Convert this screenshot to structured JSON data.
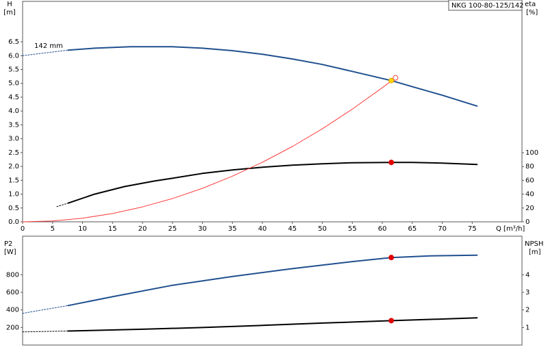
{
  "chart_data": [
    {
      "type": "line",
      "title": "NKG 100-80-125/142",
      "xlabel": "Q [m³/h]",
      "ylabel": "H",
      "yunit": "[m]",
      "y2label": "eta",
      "y2unit": "[%]",
      "xlim": [
        0,
        83.3
      ],
      "xticks": [
        0,
        5,
        10,
        15,
        20,
        25,
        30,
        35,
        40,
        45,
        50,
        55,
        60,
        65,
        70,
        75
      ],
      "ylim": [
        0,
        7.96
      ],
      "yticks": [
        {
          "value": 0,
          "label": "0.0"
        },
        {
          "value": 0.5,
          "label": "0.5"
        },
        {
          "value": 1,
          "label": "1.0"
        },
        {
          "value": 1.5,
          "label": "1.5"
        },
        {
          "value": 2,
          "label": "2.0"
        },
        {
          "value": 2.5,
          "label": "2.5"
        },
        {
          "value": 3,
          "label": "3.0"
        },
        {
          "value": 3.5,
          "label": "3.5"
        },
        {
          "value": 4,
          "label": "4.0"
        },
        {
          "value": 4.5,
          "label": "4.5"
        },
        {
          "value": 5,
          "label": "5.0"
        },
        {
          "value": 5.5,
          "label": "5.5"
        },
        {
          "value": 6,
          "label": "6.0"
        },
        {
          "value": 6.5,
          "label": "6.5"
        }
      ],
      "y2lim": [
        0,
        319
      ],
      "y2ticks": [
        0,
        20,
        40,
        60,
        80,
        100
      ],
      "series": [
        {
          "name": "142 mm",
          "color": "#1f4f8f",
          "width": 2,
          "x": [
            7.6,
            12,
            18,
            25,
            30,
            35,
            40,
            45,
            50,
            55,
            61.5,
            65,
            70,
            75.8
          ],
          "values": [
            6.2,
            6.27,
            6.32,
            6.32,
            6.27,
            6.18,
            6.05,
            5.88,
            5.68,
            5.43,
            5.1,
            4.88,
            4.57,
            4.18
          ]
        },
        {
          "color": "#1f4f8f",
          "width": 1,
          "style": "dotted",
          "x": [
            0,
            7.6
          ],
          "values": [
            6.0,
            6.2
          ]
        },
        {
          "color": "#000000",
          "width": 2,
          "axis": "y2",
          "x": [
            7.6,
            12,
            17,
            22,
            25,
            30,
            35,
            40,
            45,
            50,
            55,
            61.5,
            65,
            70,
            75.8
          ],
          "values": [
            27,
            40,
            51,
            59,
            63,
            70,
            75,
            79,
            82,
            84,
            85.5,
            86,
            86,
            85,
            83
          ]
        },
        {
          "color": "#000000",
          "width": 1,
          "style": "dotted",
          "axis": "y2",
          "x": [
            5.7,
            7.6
          ],
          "values": [
            22,
            27
          ]
        },
        {
          "color": "#ff3b3b",
          "width": 1,
          "x": [
            0,
            5,
            10,
            15,
            20,
            25,
            30,
            35,
            40,
            45,
            50,
            55,
            60,
            62.2
          ],
          "values": [
            0,
            0.03,
            0.13,
            0.3,
            0.54,
            0.84,
            1.21,
            1.65,
            2.15,
            2.72,
            3.36,
            4.07,
            4.84,
            5.2
          ]
        }
      ],
      "points": [
        {
          "x": 62.2,
          "y": 5.2,
          "color": "#ffffff",
          "stroke": "#ff3b3b"
        },
        {
          "x": 61.5,
          "y": 5.1,
          "color": "#ffd700",
          "stroke": "#e0a000"
        },
        {
          "x": 61.5,
          "y": 86,
          "axis": "y2",
          "color": "#e00000",
          "stroke": "#e00000"
        }
      ]
    },
    {
      "type": "line",
      "ylabel": "P2",
      "yunit": "[W]",
      "y2label": "NPSH",
      "y2unit": "[m]",
      "xlim": [
        0,
        83.3
      ],
      "ylim": [
        0,
        1239
      ],
      "yticks": [
        200,
        400,
        600,
        800
      ],
      "y2lim": [
        0,
        6.2
      ],
      "y2ticks": [
        1,
        2,
        3,
        4
      ],
      "series": [
        {
          "color": "#1f4f8f",
          "width": 2,
          "x": [
            7.6,
            15,
            25,
            35,
            45,
            55,
            61.5,
            68,
            75.8
          ],
          "values": [
            450,
            550,
            680,
            780,
            870,
            950,
            996,
            1015,
            1022
          ]
        },
        {
          "color": "#1f4f8f",
          "width": 1,
          "style": "dotted",
          "x": [
            0,
            7.6
          ],
          "values": [
            361,
            450
          ]
        },
        {
          "color": "#000000",
          "width": 2,
          "axis": "y2",
          "x": [
            7.6,
            20,
            30,
            40,
            50,
            61.5,
            70,
            75.8
          ],
          "values": [
            0.8,
            0.9,
            1.0,
            1.12,
            1.25,
            1.39,
            1.48,
            1.55
          ]
        },
        {
          "color": "#000000",
          "width": 1,
          "style": "dotted",
          "axis": "y2",
          "x": [
            0,
            7.6
          ],
          "values": [
            0.75,
            0.8
          ]
        }
      ],
      "points": [
        {
          "x": 61.5,
          "y": 996,
          "color": "#e00000",
          "stroke": "#e00000"
        },
        {
          "x": 61.5,
          "y": 1.39,
          "axis": "y2",
          "color": "#e00000",
          "stroke": "#e00000"
        }
      ]
    }
  ]
}
